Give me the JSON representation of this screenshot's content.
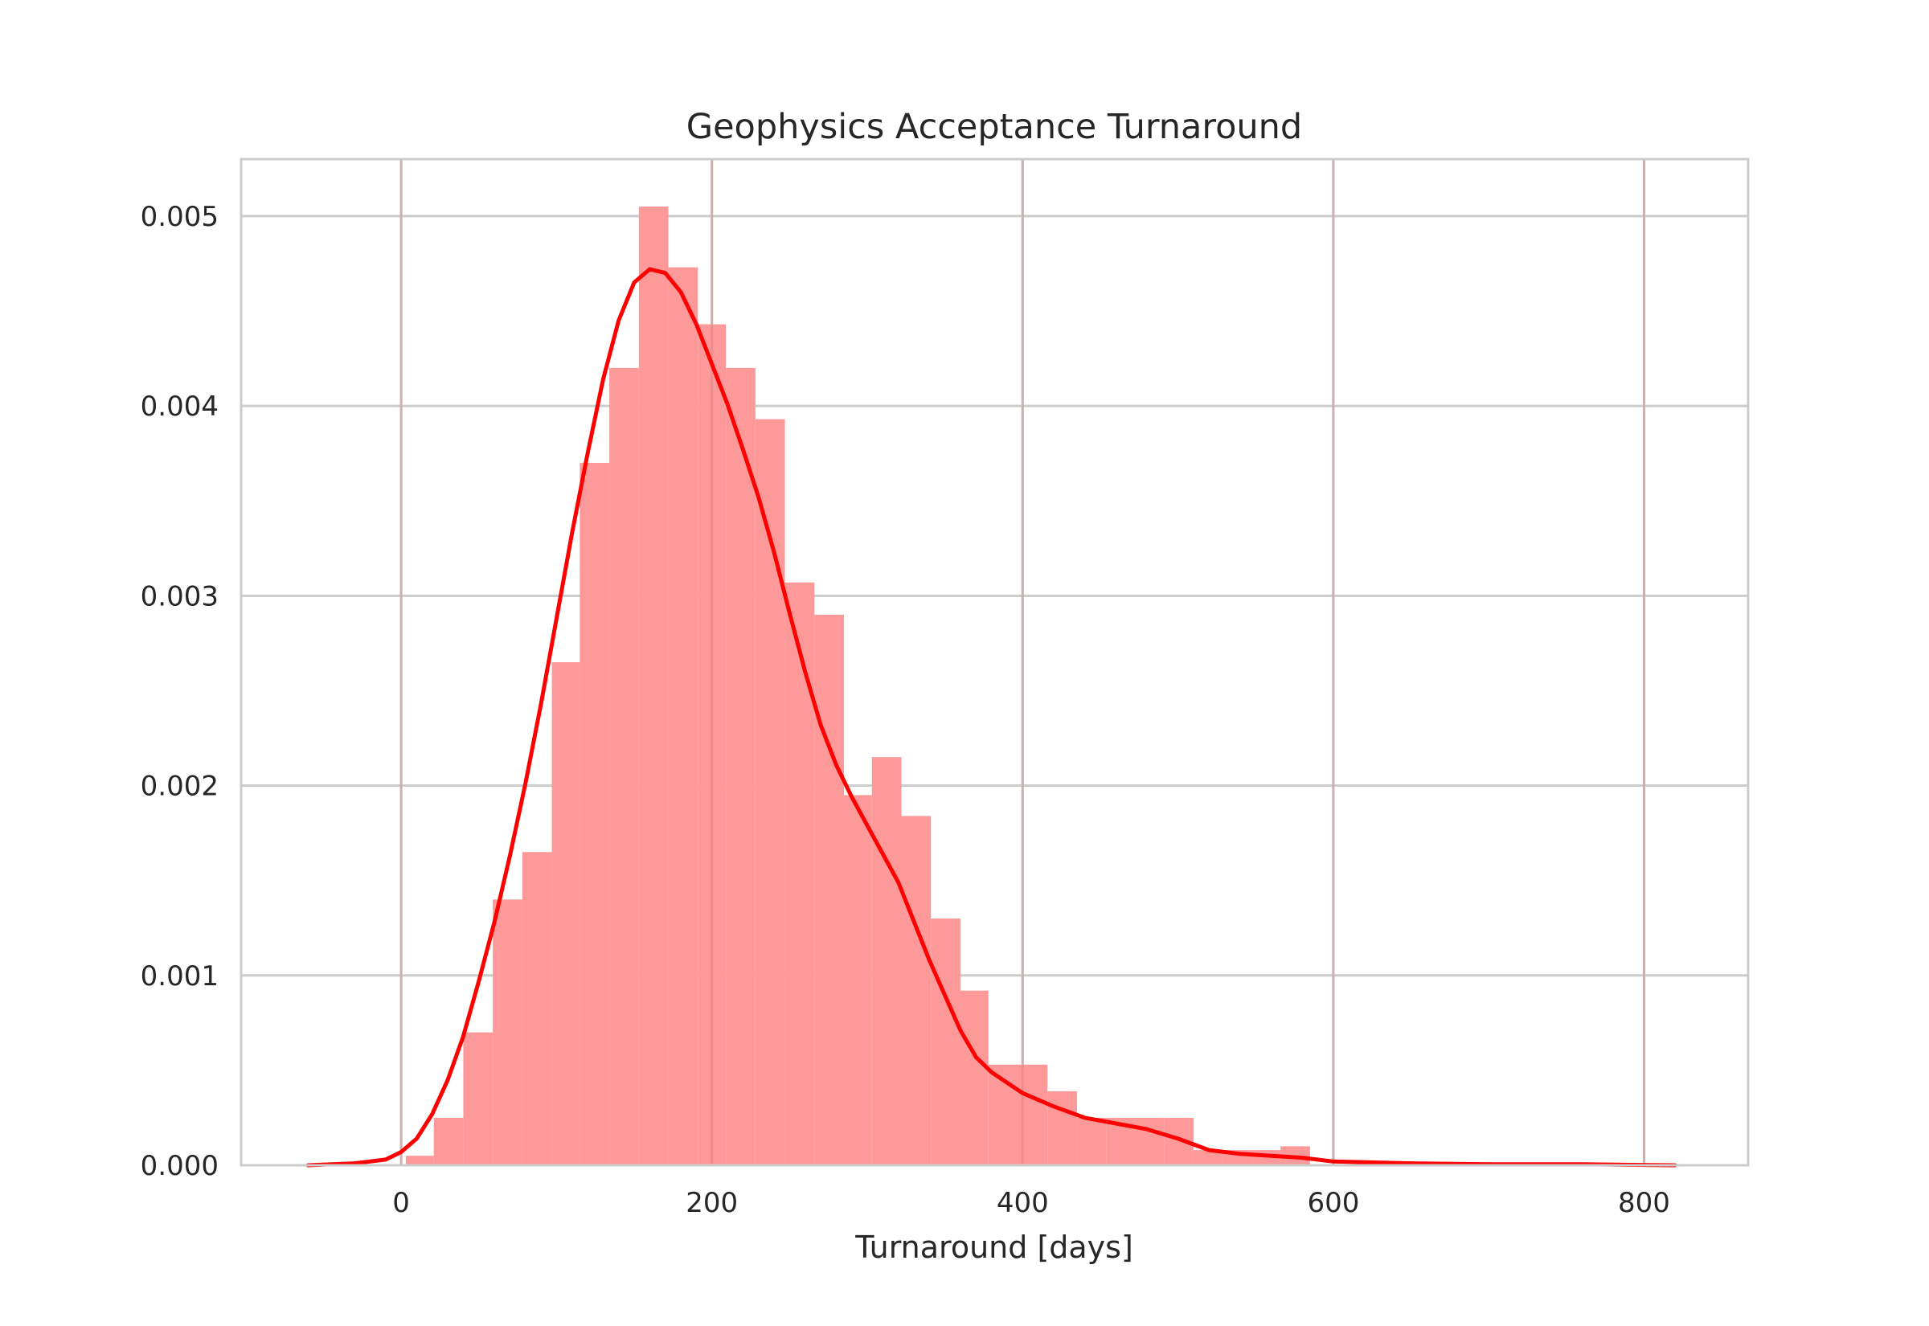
{
  "chart_data": {
    "type": "histogram",
    "title": "Geophysics Acceptance Turnaround",
    "xlabel": "Turnaround [days]",
    "ylabel": "",
    "xlim": [
      -103,
      867
    ],
    "ylim": [
      0,
      0.0053
    ],
    "xticks": [
      0,
      200,
      400,
      600,
      800
    ],
    "xtick_labels": [
      "0",
      "200",
      "400",
      "600",
      "800"
    ],
    "yticks": [
      0,
      0.001,
      0.002,
      0.003,
      0.004,
      0.005
    ],
    "ytick_labels": [
      "0.000",
      "0.001",
      "0.002",
      "0.003",
      "0.004",
      "0.005"
    ],
    "grid": true,
    "bar_color": "#fd9999",
    "kde_color": "#ff0000",
    "bins": {
      "edges": [
        3,
        21,
        40,
        59,
        78,
        97,
        115,
        134,
        153,
        172,
        191,
        209,
        228,
        247,
        266,
        285,
        303,
        322,
        341,
        360,
        378,
        397,
        416,
        435,
        454,
        472,
        491,
        510,
        529,
        548,
        566,
        585
      ],
      "density": [
        5e-05,
        0.00025,
        0.0007,
        0.0014,
        0.00165,
        0.00265,
        0.0037,
        0.0042,
        0.00505,
        0.00473,
        0.00443,
        0.0042,
        0.00393,
        0.00307,
        0.0029,
        0.00195,
        0.00215,
        0.00184,
        0.0013,
        0.00092,
        0.00053,
        0.00053,
        0.00039,
        0.00025,
        0.00025,
        0.00025,
        0.00025,
        8e-05,
        8e-05,
        8e-05,
        0.0001
      ]
    },
    "kde": {
      "x": [
        -60,
        -30,
        -10,
        0,
        10,
        20,
        30,
        40,
        50,
        60,
        70,
        80,
        90,
        100,
        110,
        120,
        130,
        140,
        150,
        160,
        170,
        180,
        190,
        200,
        210,
        220,
        230,
        240,
        250,
        260,
        270,
        280,
        290,
        300,
        320,
        340,
        360,
        370,
        380,
        400,
        420,
        440,
        460,
        480,
        500,
        520,
        540,
        560,
        580,
        600,
        650,
        700,
        760,
        820
      ],
      "y": [
        0.0,
        1e-05,
        3e-05,
        7e-05,
        0.00014,
        0.00027,
        0.00045,
        0.00068,
        0.00097,
        0.00128,
        0.00163,
        0.00201,
        0.00243,
        0.00288,
        0.00333,
        0.00375,
        0.00414,
        0.00445,
        0.00465,
        0.00472,
        0.0047,
        0.0046,
        0.00443,
        0.00422,
        0.00401,
        0.00377,
        0.00352,
        0.00323,
        0.00291,
        0.0026,
        0.00232,
        0.00211,
        0.00194,
        0.00179,
        0.00149,
        0.00108,
        0.00071,
        0.00057,
        0.00049,
        0.00038,
        0.00031,
        0.00025,
        0.00022,
        0.00019,
        0.00014,
        8e-05,
        6e-05,
        5e-05,
        4e-05,
        2e-05,
        1e-05,
        5e-06,
        5e-06,
        0.0
      ]
    }
  }
}
